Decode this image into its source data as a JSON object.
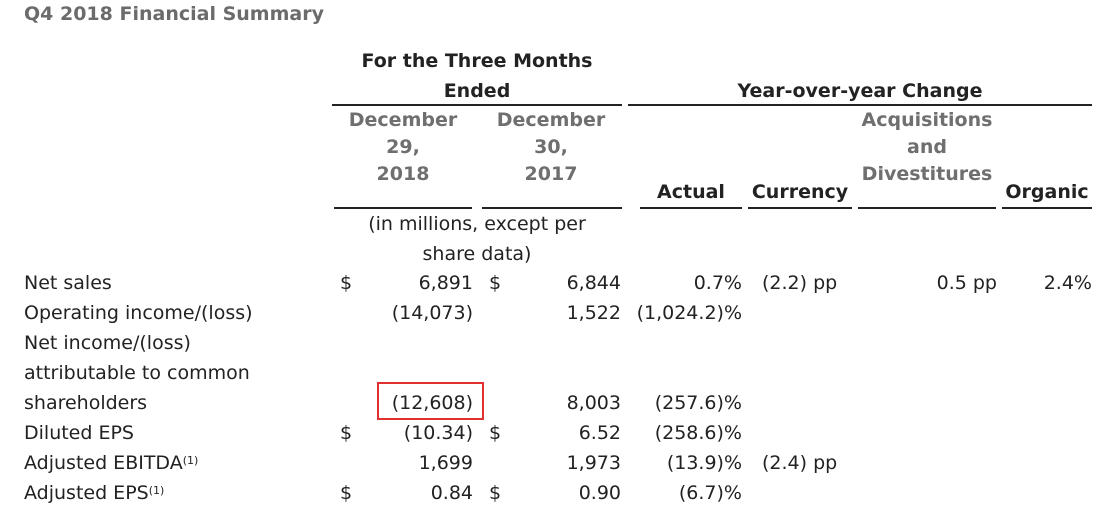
{
  "title": "Q4 2018 Financial Summary",
  "headers": {
    "three_months_line1": "For the Three Months",
    "three_months_line2": "Ended",
    "yoy": "Year-over-year Change",
    "col_2018": [
      "December",
      "29,",
      "2018"
    ],
    "col_2017": [
      "December",
      "30,",
      "2017"
    ],
    "actual": "Actual",
    "currency": "Currency",
    "acq": [
      "Acquisitions",
      "and",
      "Divestitures"
    ],
    "organic": "Organic",
    "units_line1": "(in millions, except per",
    "units_line2": "share data)"
  },
  "rows": [
    {
      "label": "Net sales",
      "d1": "$",
      "v2018": "6,891",
      "d2": "$",
      "v2017": "6,844",
      "actual": "0.7%",
      "currency": "(2.2) pp",
      "acq": "0.5 pp",
      "organic": "2.4%"
    },
    {
      "label": "Operating income/(loss)",
      "d1": "",
      "v2018": "(14,073)",
      "d2": "",
      "v2017": "1,522",
      "actual": "(1,024.2)%",
      "currency": "",
      "acq": "",
      "organic": ""
    },
    {
      "label": "Net income/(loss)",
      "d1": "",
      "v2018": "",
      "d2": "",
      "v2017": "",
      "actual": "",
      "currency": "",
      "acq": "",
      "organic": ""
    },
    {
      "label": "attributable to common",
      "d1": "",
      "v2018": "",
      "d2": "",
      "v2017": "",
      "actual": "",
      "currency": "",
      "acq": "",
      "organic": ""
    },
    {
      "label": "shareholders",
      "d1": "",
      "v2018": "(12,608)",
      "d2": "",
      "v2017": "8,003",
      "actual": "(257.6)%",
      "currency": "",
      "acq": "",
      "organic": ""
    },
    {
      "label": "Diluted EPS",
      "d1": "$",
      "v2018": "(10.34)",
      "d2": "$",
      "v2017": "6.52",
      "actual": "(258.6)%",
      "currency": "",
      "acq": "",
      "organic": ""
    },
    {
      "label": "Adjusted EBITDA",
      "sup": "(1)",
      "d1": "",
      "v2018": "1,699",
      "d2": "",
      "v2017": "1,973",
      "actual": "(13.9)%",
      "currency": "(2.4) pp",
      "acq": "",
      "organic": ""
    },
    {
      "label": "Adjusted EPS",
      "sup": "(1)",
      "d1": "$",
      "v2018": "0.84",
      "d2": "$",
      "v2017": "0.90",
      "actual": "(6.7)%",
      "currency": "",
      "acq": "",
      "organic": ""
    }
  ],
  "highlight": "(12,608)"
}
